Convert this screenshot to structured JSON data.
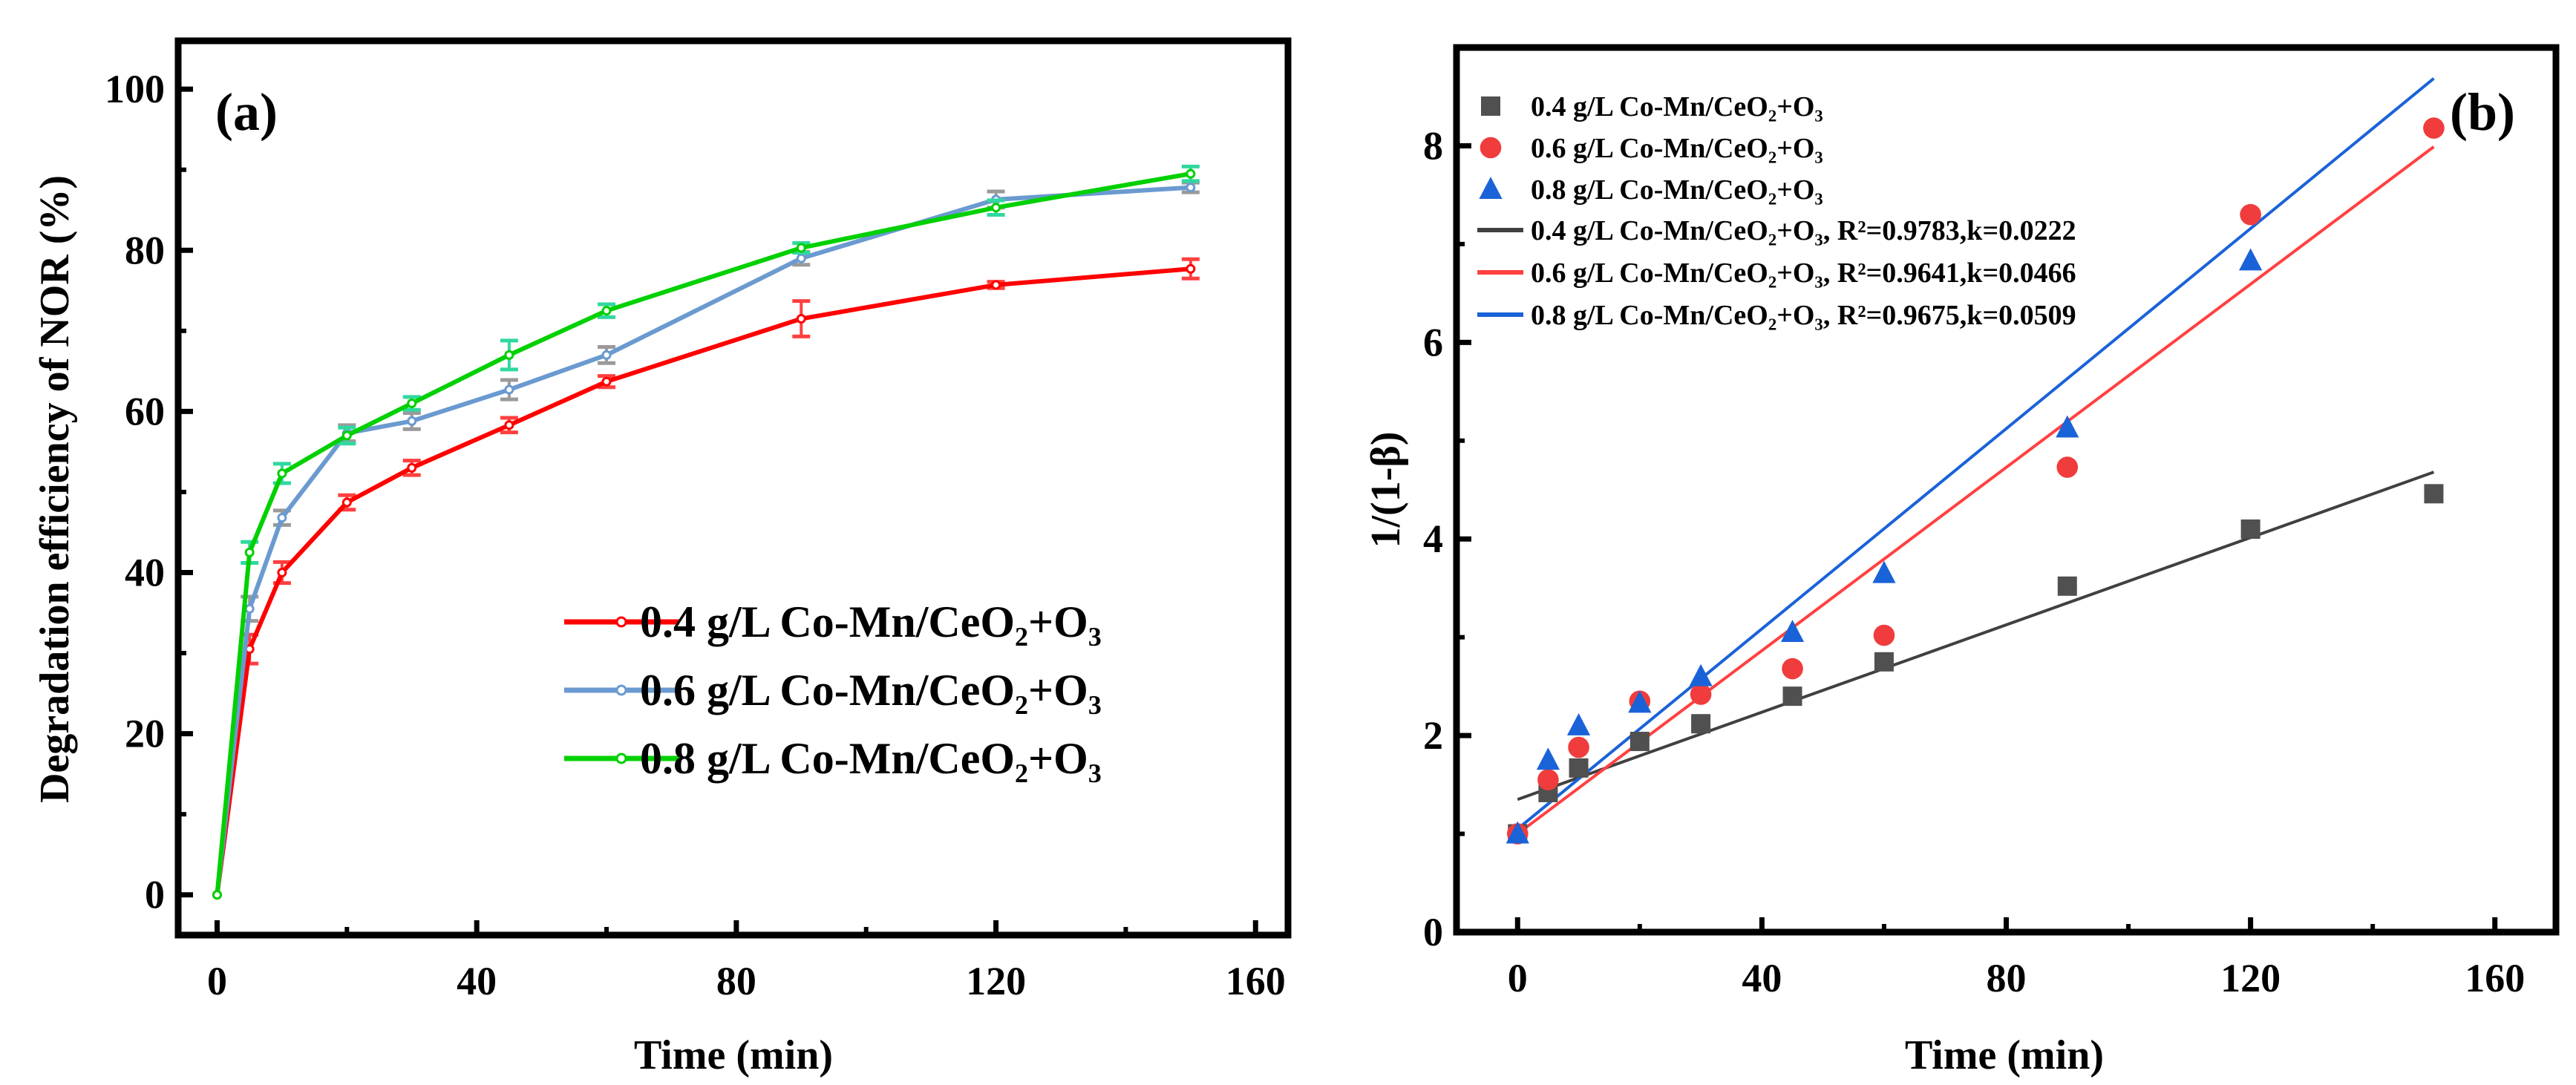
{
  "chart_data": [
    {
      "type": "line",
      "panel_label": "(a)",
      "xlabel": "Time (min)",
      "ylabel": "Degradation efficiency of NOR (%)",
      "xlim": [
        -6,
        165
      ],
      "ylim": [
        -5,
        106
      ],
      "xticks": [
        0,
        40,
        80,
        120,
        160
      ],
      "yticks": [
        0,
        20,
        40,
        60,
        80,
        100
      ],
      "grid": false,
      "legend_position": "lower-right",
      "x": [
        0,
        5,
        10,
        20,
        30,
        45,
        60,
        90,
        120,
        150
      ],
      "series": [
        {
          "name": "0.4 g/L Co-Mn/CeO₂+O₃",
          "color": "#ff0000",
          "error_color": "#ff4040",
          "values": [
            0,
            30.5,
            40.0,
            48.7,
            53.0,
            58.3,
            63.7,
            71.5,
            75.7,
            77.7
          ],
          "errors": [
            0,
            1.8,
            1.3,
            0.9,
            0.9,
            0.9,
            0.7,
            2.2,
            0.4,
            1.2
          ]
        },
        {
          "name": "0.6 g/L Co-Mn/CeO₂+O₃",
          "color": "#6a9ad0",
          "error_color": "#9a9a9a",
          "values": [
            0,
            35.5,
            46.8,
            57.3,
            58.8,
            62.7,
            67.0,
            79.0,
            86.3,
            87.8
          ],
          "errors": [
            0,
            1.5,
            0.9,
            1.0,
            1.0,
            1.2,
            1.0,
            0.8,
            1.0,
            0.6
          ]
        },
        {
          "name": "0.8 g/L Co-Mn/CeO₂+O₃",
          "color": "#00d000",
          "error_color": "#30d8a0",
          "values": [
            0,
            42.5,
            52.3,
            57.0,
            61.0,
            67.0,
            72.5,
            80.3,
            85.3,
            89.5
          ],
          "errors": [
            0,
            1.3,
            1.2,
            1.0,
            0.8,
            1.8,
            0.8,
            0.6,
            0.9,
            0.9
          ]
        }
      ]
    },
    {
      "type": "scatter",
      "panel_label": "(b)",
      "xlabel": "Time (min)",
      "ylabel": "1/(1-β)",
      "xlim": [
        -10,
        170
      ],
      "ylim": [
        0,
        9
      ],
      "xticks": [
        0,
        40,
        80,
        120,
        160
      ],
      "yticks": [
        0,
        2,
        4,
        6,
        8
      ],
      "grid": false,
      "legend_position": "top-left",
      "series": [
        {
          "name": "0.4 g/L Co-Mn/CeO₂+O₃",
          "marker": "square",
          "color": "#505050",
          "x": [
            0,
            5,
            10,
            20,
            30,
            45,
            60,
            90,
            120,
            150
          ],
          "values": [
            1.0,
            1.42,
            1.67,
            1.94,
            2.12,
            2.4,
            2.75,
            3.52,
            4.1,
            4.46
          ]
        },
        {
          "name": "0.6 g/L Co-Mn/CeO₂+O₃",
          "marker": "circle",
          "color": "#f03c3c",
          "x": [
            0,
            5,
            10,
            20,
            30,
            45,
            60,
            90,
            120,
            150
          ],
          "values": [
            1.0,
            1.55,
            1.88,
            2.35,
            2.42,
            2.68,
            3.02,
            4.73,
            7.3,
            8.18
          ]
        },
        {
          "name": "0.8 g/L Co-Mn/CeO₂+O₃",
          "marker": "triangle",
          "color": "#1a62d8",
          "x": [
            0,
            5,
            10,
            20,
            30,
            45,
            60,
            90,
            120
          ],
          "values": [
            1.0,
            1.75,
            2.1,
            2.33,
            2.6,
            3.05,
            3.65,
            5.13,
            6.83
          ]
        }
      ],
      "fits": [
        {
          "name": "0.4 g/L Co-Mn/CeO₂+O₃, R²=0.9783,k=0.0222",
          "color": "#404040",
          "k": 0.0222,
          "intercept": 1.35,
          "x_range": [
            0,
            150
          ]
        },
        {
          "name": "0.6 g/L Co-Mn/CeO₂+O₃, R²=0.9641,k=0.0466",
          "color": "#ff4040",
          "k": 0.0466,
          "intercept": 1.0,
          "x_range": [
            0,
            150
          ]
        },
        {
          "name": "0.8 g/L Co-Mn/CeO₂+O₃, R²=0.9675,k=0.0509",
          "color": "#1a62d8",
          "k": 0.0509,
          "intercept": 1.05,
          "x_range": [
            0,
            150
          ]
        }
      ]
    }
  ]
}
